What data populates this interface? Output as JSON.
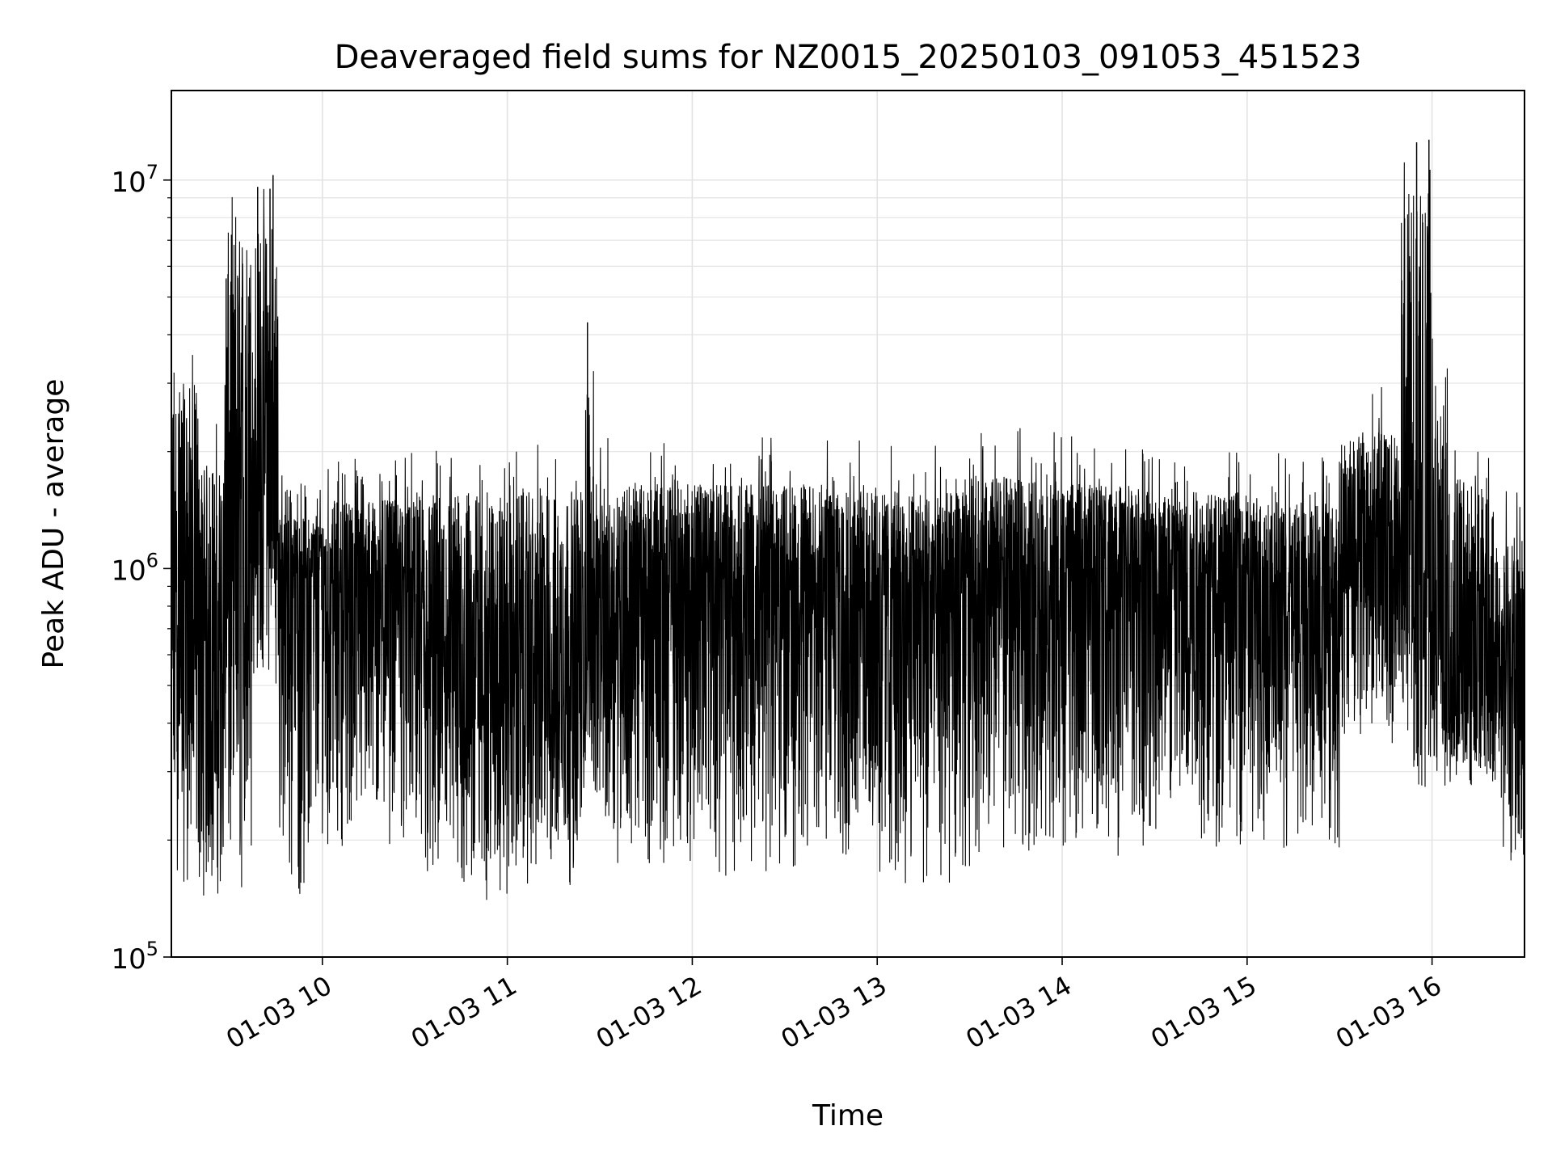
{
  "chart_data": {
    "type": "line",
    "title": "Deaveraged field sums for NZ0015_20250103_091053_451523",
    "xlabel": "Time",
    "ylabel": "Peak ADU - average",
    "x_axis": {
      "kind": "datetime",
      "range": [
        "2025-01-03 09:11",
        "2025-01-03 16:30"
      ],
      "ticks": [
        "2025-01-03 10:00",
        "2025-01-03 11:00",
        "2025-01-03 12:00",
        "2025-01-03 13:00",
        "2025-01-03 14:00",
        "2025-01-03 15:00",
        "2025-01-03 16:00"
      ],
      "tick_labels": [
        "01-03 10",
        "01-03 11",
        "01-03 12",
        "01-03 13",
        "01-03 14",
        "01-03 15",
        "01-03 16"
      ],
      "tick_label_rotation_deg": 30
    },
    "y_axis": {
      "scale": "log",
      "range": [
        100000,
        17000000
      ],
      "ticks": [
        100000,
        1000000,
        10000000
      ],
      "tick_labels": [
        {
          "base": "10",
          "exp": "5"
        },
        {
          "base": "10",
          "exp": "6"
        },
        {
          "base": "10",
          "exp": "7"
        }
      ]
    },
    "grid": true,
    "line_color": "#000000",
    "series": [
      {
        "name": "",
        "segments": [
          {
            "start": "2025-01-03 09:11",
            "end": "2025-01-03 09:20",
            "low": 150000,
            "high": 4000000,
            "median": 700000
          },
          {
            "start": "2025-01-03 09:20",
            "end": "2025-01-03 09:28",
            "low": 140000,
            "high": 2500000,
            "median": 500000
          },
          {
            "start": "2025-01-03 09:28",
            "end": "2025-01-03 09:37",
            "low": 130000,
            "high": 9800000,
            "median": 900000
          },
          {
            "start": "2025-01-03 09:37",
            "end": "2025-01-03 09:46",
            "low": 500000,
            "high": 10300000,
            "median": 1300000
          },
          {
            "start": "2025-01-03 09:46",
            "end": "2025-01-03 10:00",
            "low": 130000,
            "high": 1800000,
            "median": 950000
          },
          {
            "start": "2025-01-03 10:00",
            "end": "2025-01-03 10:30",
            "low": 190000,
            "high": 2000000,
            "median": 900000
          },
          {
            "start": "2025-01-03 10:30",
            "end": "2025-01-03 11:00",
            "low": 130000,
            "high": 2100000,
            "median": 500000
          },
          {
            "start": "2025-01-03 11:00",
            "end": "2025-01-03 11:25",
            "low": 150000,
            "high": 2100000,
            "median": 500000
          },
          {
            "start": "2025-01-03 11:25",
            "end": "2025-01-03 11:28",
            "low": 300000,
            "high": 4300000,
            "median": 600000
          },
          {
            "start": "2025-01-03 11:28",
            "end": "2025-01-03 11:35",
            "low": 200000,
            "high": 2200000,
            "median": 700000
          },
          {
            "start": "2025-01-03 11:35",
            "end": "2025-01-03 12:00",
            "low": 170000,
            "high": 2200000,
            "median": 800000
          },
          {
            "start": "2025-01-03 12:00",
            "end": "2025-01-03 12:30",
            "low": 160000,
            "high": 2200000,
            "median": 900000
          },
          {
            "start": "2025-01-03 12:30",
            "end": "2025-01-03 13:00",
            "low": 160000,
            "high": 2200000,
            "median": 850000
          },
          {
            "start": "2025-01-03 13:00",
            "end": "2025-01-03 13:30",
            "low": 140000,
            "high": 2100000,
            "median": 800000
          },
          {
            "start": "2025-01-03 13:30",
            "end": "2025-01-03 14:00",
            "low": 180000,
            "high": 2300000,
            "median": 850000
          },
          {
            "start": "2025-01-03 14:00",
            "end": "2025-01-03 14:30",
            "low": 180000,
            "high": 2200000,
            "median": 900000
          },
          {
            "start": "2025-01-03 14:30",
            "end": "2025-01-03 15:00",
            "low": 190000,
            "high": 2100000,
            "median": 900000
          },
          {
            "start": "2025-01-03 15:00",
            "end": "2025-01-03 15:30",
            "low": 180000,
            "high": 2000000,
            "median": 800000
          },
          {
            "start": "2025-01-03 15:30",
            "end": "2025-01-03 15:50",
            "low": 350000,
            "high": 3000000,
            "median": 1000000
          },
          {
            "start": "2025-01-03 15:50",
            "end": "2025-01-03 16:00",
            "low": 270000,
            "high": 12500000,
            "median": 1000000
          },
          {
            "start": "2025-01-03 16:00",
            "end": "2025-01-03 16:05",
            "low": 270000,
            "high": 4200000,
            "median": 600000
          },
          {
            "start": "2025-01-03 16:05",
            "end": "2025-01-03 16:20",
            "low": 270000,
            "high": 2300000,
            "median": 450000
          },
          {
            "start": "2025-01-03 16:20",
            "end": "2025-01-03 16:30",
            "low": 170000,
            "high": 1600000,
            "median": 500000
          }
        ],
        "peaks": [
          {
            "x": "2025-01-03 09:39",
            "y": 9600000
          },
          {
            "x": "2025-01-03 09:43",
            "y": 9500000
          },
          {
            "x": "2025-01-03 09:44",
            "y": 10300000
          },
          {
            "x": "2025-01-03 11:26",
            "y": 4300000
          },
          {
            "x": "2025-01-03 15:55",
            "y": 12500000
          },
          {
            "x": "2025-01-03 15:59",
            "y": 12700000
          }
        ]
      }
    ]
  }
}
